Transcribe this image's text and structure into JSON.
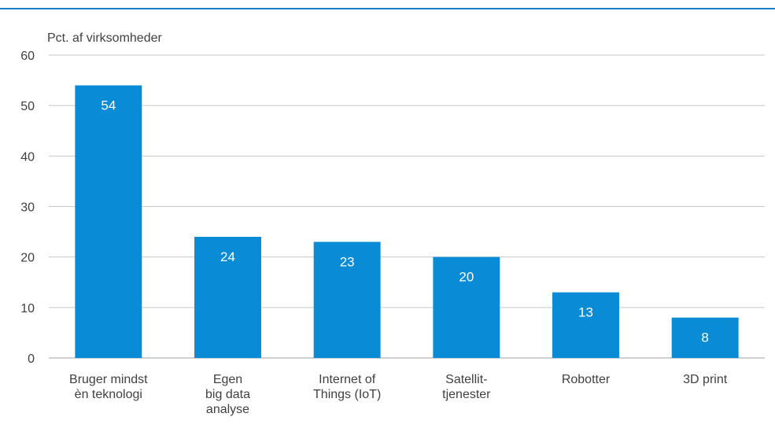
{
  "chart_data": {
    "type": "bar",
    "title": "",
    "ylabel": "Pct. af virksomheder",
    "xlabel": "",
    "ylim": [
      0,
      60
    ],
    "yticks": [
      0,
      10,
      20,
      30,
      40,
      50,
      60
    ],
    "grid": true,
    "bar_color": "#0a8bd6",
    "grid_color": "#c8c8c8",
    "categories": [
      [
        "Bruger mindst",
        "èn teknologi"
      ],
      [
        "Egen",
        "big data",
        "analyse"
      ],
      [
        "Internet of",
        "Things (IoT)"
      ],
      [
        "Satellit-",
        "tjenester"
      ],
      [
        "Robotter"
      ],
      [
        "3D print"
      ]
    ],
    "values": [
      54,
      24,
      23,
      20,
      13,
      8
    ]
  }
}
